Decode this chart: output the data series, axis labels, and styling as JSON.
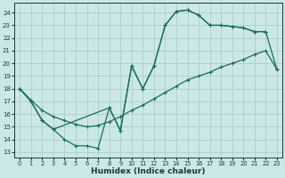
{
  "xlabel": "Humidex (Indice chaleur)",
  "background_color": "#cce8e6",
  "grid_color": "#a8d0cd",
  "line_color": "#1a6b5e",
  "xlim": [
    -0.5,
    23.5
  ],
  "ylim": [
    12.6,
    24.8
  ],
  "yticks": [
    13,
    14,
    15,
    16,
    17,
    18,
    19,
    20,
    21,
    22,
    23,
    24
  ],
  "xticks": [
    0,
    1,
    2,
    3,
    4,
    5,
    6,
    7,
    8,
    9,
    10,
    11,
    12,
    13,
    14,
    15,
    16,
    17,
    18,
    19,
    20,
    21,
    22,
    23
  ],
  "line1_x": [
    0,
    1,
    2,
    3,
    4,
    5,
    6,
    7,
    8,
    9,
    10,
    11,
    12,
    13,
    14,
    15,
    16,
    17,
    18,
    19,
    20,
    21,
    22
  ],
  "line1_y": [
    18,
    17,
    15.5,
    14.8,
    14.0,
    13.5,
    13.5,
    13.3,
    16.5,
    14.7,
    19.8,
    18.0,
    19.8,
    23.0,
    24.1,
    24.2,
    23.8,
    23.0,
    23.0,
    22.9,
    22.8,
    22.5,
    22.5
  ],
  "line2_x": [
    0,
    1,
    2,
    3,
    4,
    5,
    6,
    7,
    8,
    9,
    10,
    11,
    12,
    13,
    14,
    15,
    16,
    17,
    18,
    19,
    20,
    21,
    22,
    23
  ],
  "line2_y": [
    18.0,
    17.1,
    16.3,
    15.8,
    15.5,
    15.2,
    15.0,
    15.1,
    15.4,
    15.8,
    16.3,
    16.7,
    17.2,
    17.7,
    18.2,
    18.7,
    19.0,
    19.3,
    19.7,
    20.0,
    20.3,
    20.7,
    21.0,
    19.5
  ],
  "line3_x": [
    0,
    1,
    2,
    3,
    8,
    9,
    10,
    11,
    12,
    13,
    14,
    15,
    16,
    17,
    18,
    19,
    20,
    21,
    22,
    23
  ],
  "line3_y": [
    18,
    17,
    15.5,
    14.8,
    16.5,
    14.7,
    19.8,
    18.0,
    19.8,
    23.0,
    24.1,
    24.2,
    23.8,
    23.0,
    23.0,
    22.9,
    22.8,
    22.5,
    22.5,
    19.5
  ]
}
